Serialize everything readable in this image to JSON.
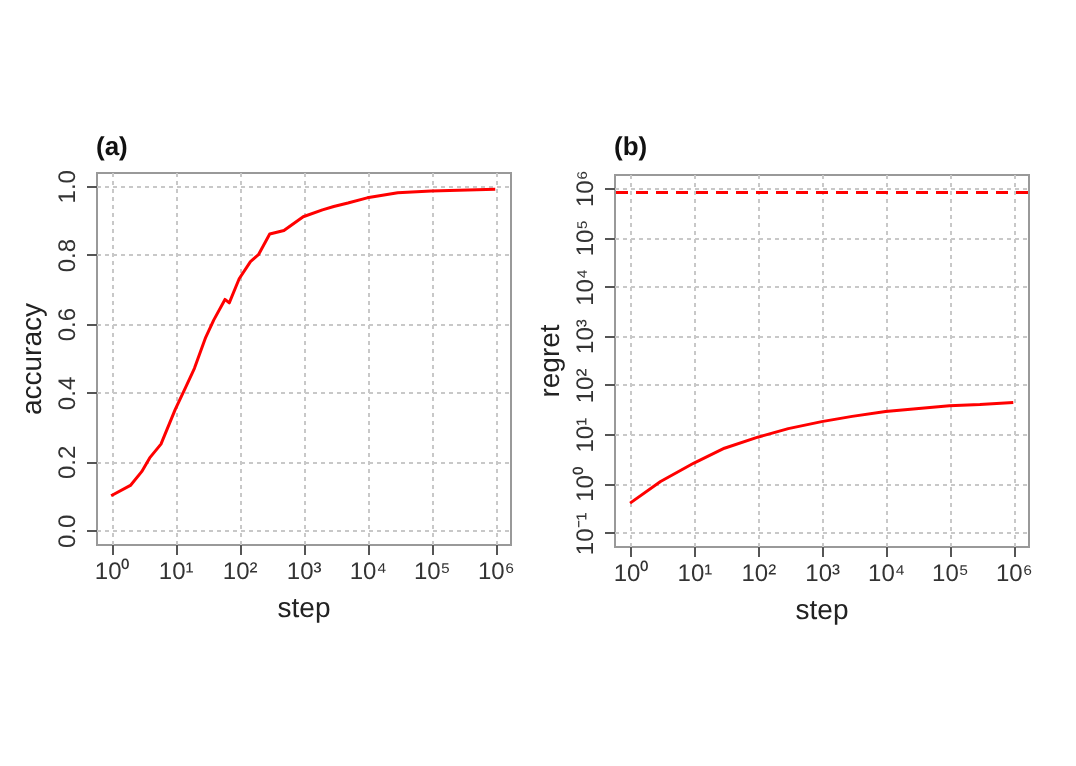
{
  "chart_data": [
    {
      "type": "line",
      "title": "(a)",
      "xlabel": "step",
      "ylabel": "accuracy",
      "log": "x",
      "grid": true,
      "marker": "none",
      "line_style": "solid",
      "xlim": [
        0.58,
        1700000
      ],
      "xticks": [
        {
          "value": 1,
          "label": "10⁰"
        },
        {
          "value": 10,
          "label": "10¹"
        },
        {
          "value": 100,
          "label": "10²"
        },
        {
          "value": 1000,
          "label": "10³"
        },
        {
          "value": 10000,
          "label": "10⁴"
        },
        {
          "value": 100000,
          "label": "10⁵"
        },
        {
          "value": 1000000,
          "label": "10⁶"
        }
      ],
      "ylim": [
        -0.04,
        1.04
      ],
      "yticks": [
        {
          "value": 0,
          "label": "0.0"
        },
        0.2,
        0.4,
        0.6,
        0.8,
        {
          "value": 1,
          "label": "1.0"
        }
      ],
      "x": [
        1,
        2,
        3,
        4,
        6,
        10,
        15,
        20,
        30,
        40,
        60,
        70,
        100,
        150,
        200,
        300,
        500,
        1000,
        2000,
        3000,
        5000,
        10000,
        30000,
        100000,
        1000000
      ],
      "series": [
        {
          "color": "#ff0000",
          "values": [
            0.1,
            0.13,
            0.17,
            0.21,
            0.25,
            0.35,
            0.42,
            0.47,
            0.56,
            0.61,
            0.67,
            0.66,
            0.73,
            0.78,
            0.8,
            0.86,
            0.87,
            0.91,
            0.93,
            0.94,
            0.95,
            0.965,
            0.98,
            0.985,
            0.99
          ]
        }
      ]
    },
    {
      "type": "line",
      "title": "(b)",
      "xlabel": "step",
      "ylabel": "regret",
      "log": "xy",
      "grid": true,
      "marker": "none",
      "line_style": "solid",
      "xlim": [
        0.56,
        1700000
      ],
      "xticks": [
        {
          "value": 1,
          "label": "10⁰"
        },
        {
          "value": 10,
          "label": "10¹"
        },
        {
          "value": 100,
          "label": "10²"
        },
        {
          "value": 1000,
          "label": "10³"
        },
        {
          "value": 10000,
          "label": "10⁴"
        },
        {
          "value": 100000,
          "label": "10⁵"
        },
        {
          "value": 1000000,
          "label": "10⁶"
        }
      ],
      "ylim": [
        0.054,
        1900000
      ],
      "yticks": [
        {
          "value": 0.1,
          "label": "10⁻¹"
        },
        {
          "value": 1,
          "label": "10⁰"
        },
        {
          "value": 10,
          "label": "10¹"
        },
        {
          "value": 100,
          "label": "10²"
        },
        {
          "value": 1000,
          "label": "10³"
        },
        {
          "value": 10000,
          "label": "10⁴"
        },
        {
          "value": 100000,
          "label": "10⁵"
        },
        {
          "value": 1000000,
          "label": "10⁶"
        }
      ],
      "x": [
        1,
        3,
        10,
        30,
        100,
        300,
        1000,
        3000,
        10000,
        30000,
        100000,
        300000,
        1000000
      ],
      "series": [
        {
          "color": "#ff0000",
          "values": [
            0.4,
            1.1,
            2.6,
            5.2,
            8.7,
            13,
            18,
            23,
            29,
            33,
            38,
            40,
            44
          ]
        }
      ],
      "ref_lines": [
        {
          "axis": "y",
          "value": 800000,
          "color": "#ff0000",
          "line_style": "dashed"
        }
      ]
    }
  ]
}
